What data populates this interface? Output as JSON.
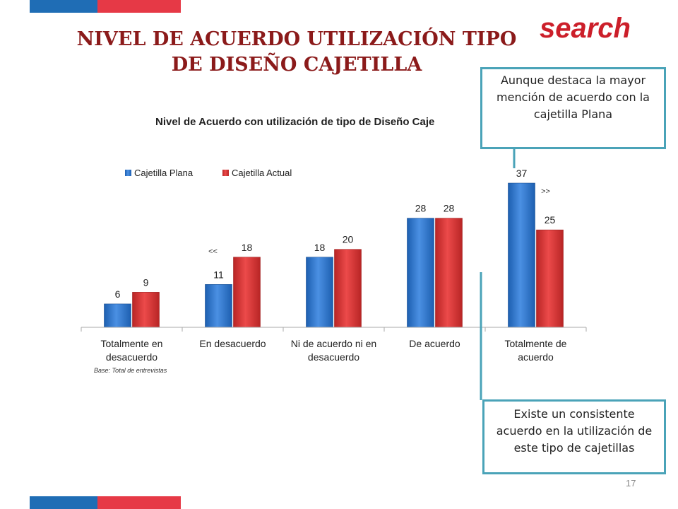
{
  "slide": {
    "title_line1": "NIVEL DE ACUERDO UTILIZACIÓN TIPO",
    "title_line2": "DE DISEÑO CAJETILLA",
    "logo_text": "search",
    "page_number": "17",
    "colors": {
      "flag_blue": "#1f6db5",
      "flag_red": "#e63946",
      "title": "#8b1a1a",
      "logo": "#cc1f2a",
      "callout_border": "#4aa3b8"
    }
  },
  "callouts": {
    "top": "Aunque destaca la mayor mención de acuerdo con la cajetilla Plana",
    "bottom": "Existe un consistente acuerdo en la utilización de este tipo de cajetillas"
  },
  "chart_data": {
    "type": "bar",
    "title": "Nivel de Acuerdo con utilización de tipo de Diseño Caje",
    "categories": [
      [
        "Totalmente en",
        "desacuerdo"
      ],
      [
        "En desacuerdo"
      ],
      [
        "Ni de acuerdo ni en",
        "desacuerdo"
      ],
      [
        "De acuerdo"
      ],
      [
        "Totalmente de",
        "acuerdo"
      ]
    ],
    "series": [
      {
        "name": "Cajetilla Plana",
        "color": "#2e75d1",
        "values": [
          6,
          11,
          18,
          28,
          37
        ]
      },
      {
        "name": "Cajetilla Actual",
        "color": "#d93636",
        "values": [
          9,
          18,
          20,
          28,
          25
        ]
      }
    ],
    "ylim": [
      0,
      37
    ],
    "grid": false,
    "legend_position": "top-left",
    "annotations": [
      {
        "text": "<<",
        "category_index": 1
      },
      {
        "text": ">>",
        "category_index": 4
      }
    ],
    "footnote": "Base: Total  de entrevistas"
  }
}
